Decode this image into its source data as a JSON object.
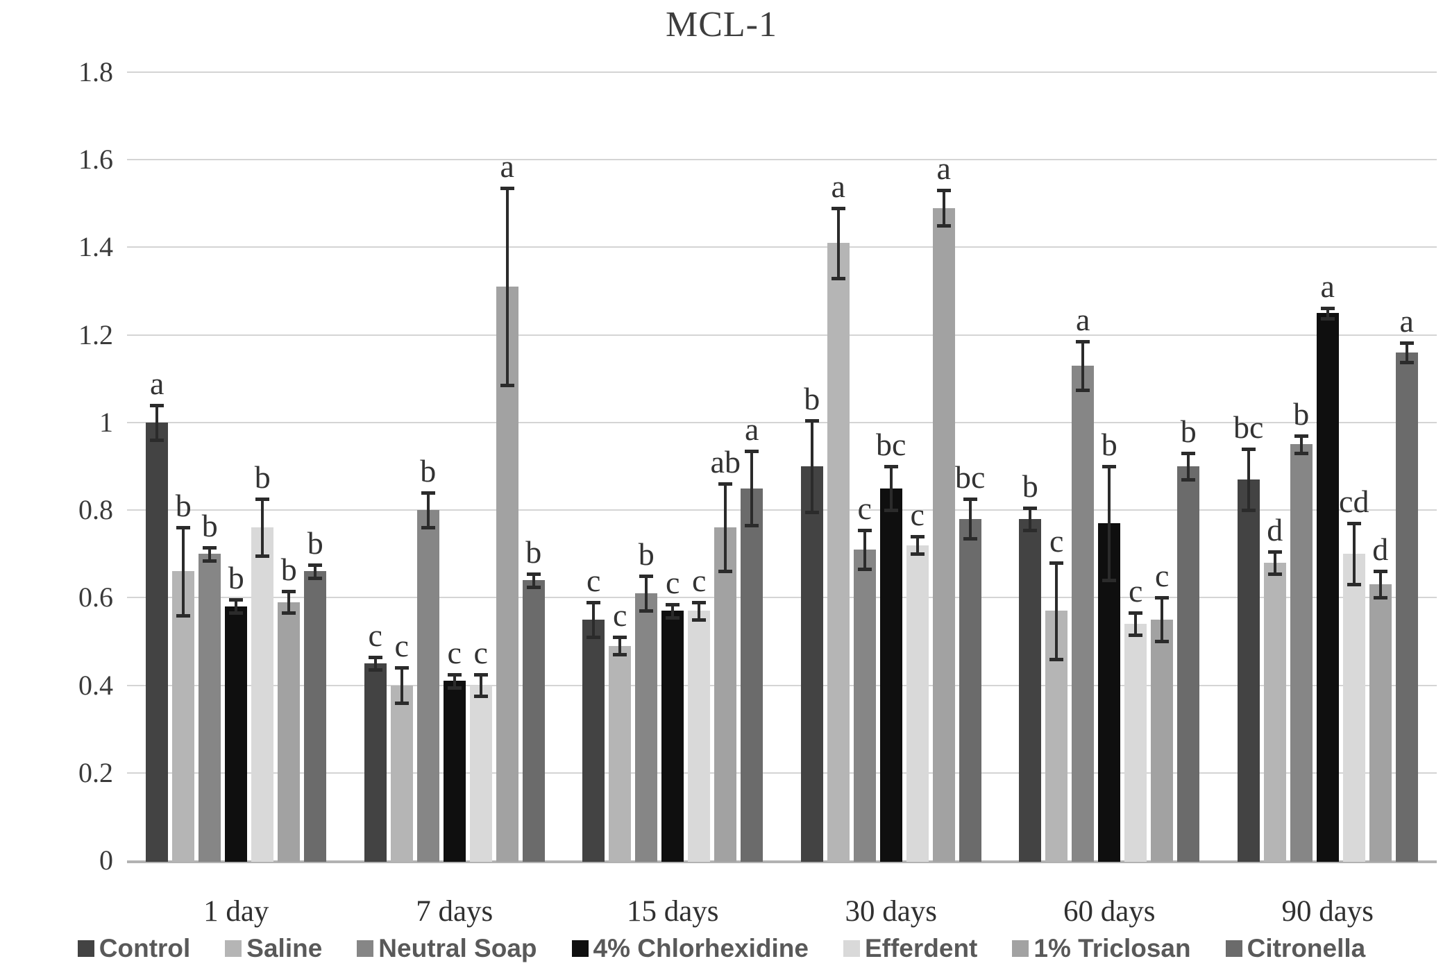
{
  "title": "MCL-1",
  "y_axis": {
    "tick_labels": [
      "1.8",
      "1.6",
      "1.4",
      "1.2",
      "1",
      "0.8",
      "0.6",
      "0.4",
      "0.2",
      "0"
    ],
    "max": 1.8,
    "min": 0,
    "step": 0.2
  },
  "chart_data": {
    "type": "bar",
    "title": "MCL-1",
    "categories": [
      "1 day",
      "7 days",
      "15 days",
      "30 days",
      "60 days",
      "90 days"
    ],
    "ylim": [
      0,
      1.8
    ],
    "ytick_step": 0.2,
    "grid": true,
    "legend_position": "bottom",
    "error_bars": true,
    "series": [
      {
        "name": "Control",
        "color": "#434343",
        "values": [
          1.0,
          0.45,
          0.55,
          0.9,
          0.78,
          0.87
        ],
        "errors": [
          0.04,
          0.015,
          0.04,
          0.105,
          0.025,
          0.07
        ],
        "letters": [
          "a",
          "c",
          "c",
          "b",
          "b",
          "bc"
        ]
      },
      {
        "name": "Saline",
        "color": "#b5b5b5",
        "values": [
          0.66,
          0.4,
          0.49,
          1.41,
          0.57,
          0.68
        ],
        "errors": [
          0.1,
          0.04,
          0.02,
          0.08,
          0.11,
          0.025
        ],
        "letters": [
          "b",
          "c",
          "c",
          "a",
          "c",
          "d"
        ]
      },
      {
        "name": "Neutral Soap",
        "color": "#868686",
        "values": [
          0.7,
          0.8,
          0.61,
          0.71,
          1.13,
          0.95
        ],
        "errors": [
          0.015,
          0.04,
          0.04,
          0.045,
          0.055,
          0.02
        ],
        "letters": [
          "b",
          "b",
          "b",
          "c",
          "a",
          "b"
        ]
      },
      {
        "name": "4% Chlorhexidine",
        "color": "#0f0f0f",
        "values": [
          0.58,
          0.41,
          0.57,
          0.85,
          0.77,
          1.25
        ],
        "errors": [
          0.015,
          0.015,
          0.015,
          0.05,
          0.13,
          0.012
        ],
        "letters": [
          "b",
          "c",
          "c",
          "bc",
          "b",
          "a"
        ]
      },
      {
        "name": "Efferdent",
        "color": "#d9d9d9",
        "values": [
          0.76,
          0.4,
          0.57,
          0.72,
          0.54,
          0.7
        ],
        "errors": [
          0.065,
          0.025,
          0.02,
          0.02,
          0.025,
          0.07
        ],
        "letters": [
          "b",
          "c",
          "c",
          "c",
          "c",
          "cd"
        ]
      },
      {
        "name": "1% Triclosan",
        "color": "#a2a2a2",
        "values": [
          0.59,
          1.31,
          0.76,
          1.49,
          0.55,
          0.63
        ],
        "errors": [
          0.025,
          0.225,
          0.1,
          0.04,
          0.05,
          0.03
        ],
        "letters": [
          "b",
          "a",
          "ab",
          "a",
          "c",
          "d"
        ]
      },
      {
        "name": "Citronella",
        "color": "#6b6b6b",
        "values": [
          0.66,
          0.64,
          0.85,
          0.78,
          0.9,
          1.16
        ],
        "errors": [
          0.015,
          0.015,
          0.085,
          0.045,
          0.03,
          0.022
        ],
        "letters": [
          "b",
          "b",
          "a",
          "bc",
          "b",
          "a"
        ]
      }
    ]
  }
}
